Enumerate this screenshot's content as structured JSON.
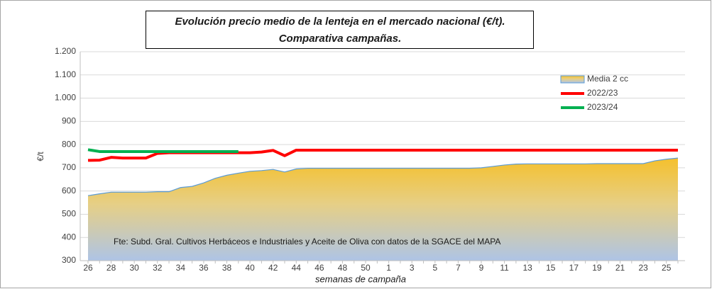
{
  "chart_data": {
    "type": "line",
    "title": [
      "Evolución precio medio de la lenteja en el mercado nacional (€/t).",
      "Comparativa campañas."
    ],
    "y_label": "€/t",
    "x_label": "semanas de campaña",
    "annotation": "Fte: Subd. Gral. Cultivos Herbáceos e Industriales y Aceite de Oliva con datos de la SGACE del MAPA",
    "categories": [
      "26",
      null,
      "28",
      null,
      "30",
      null,
      "32",
      null,
      "34",
      null,
      "36",
      null,
      "38",
      null,
      "40",
      null,
      "42",
      null,
      "44",
      null,
      "46",
      null,
      "48",
      null,
      "50",
      null,
      "1",
      null,
      "3",
      null,
      "5",
      null,
      "7",
      null,
      "9",
      null,
      "11",
      null,
      "13",
      null,
      "15",
      null,
      "17",
      null,
      "19",
      null,
      "21",
      null,
      "23",
      null,
      "25",
      null
    ],
    "series": [
      {
        "name": "Media 2 cc",
        "kind": "area",
        "color": "#5b9bd5",
        "values": [
          580,
          588,
          595,
          595,
          595,
          595,
          597,
          597,
          615,
          620,
          635,
          655,
          668,
          677,
          685,
          688,
          693,
          682,
          695,
          698,
          698,
          698,
          698,
          698,
          698,
          698,
          698,
          698,
          698,
          698,
          698,
          698,
          698,
          698,
          700,
          706,
          712,
          716,
          717,
          717,
          717,
          717,
          717,
          717,
          718,
          718,
          718,
          718,
          718,
          730,
          737,
          742
        ]
      },
      {
        "name": "2022/23",
        "kind": "line",
        "color": "#ff0000",
        "values": [
          732,
          733,
          745,
          742,
          742,
          742,
          762,
          765,
          765,
          765,
          765,
          765,
          765,
          765,
          765,
          768,
          775,
          752,
          776,
          776,
          776,
          776,
          776,
          776,
          776,
          776,
          776,
          776,
          776,
          776,
          776,
          776,
          776,
          776,
          776,
          776,
          776,
          776,
          776,
          776,
          776,
          776,
          776,
          776,
          776,
          776,
          776,
          776,
          776,
          776,
          776,
          776
        ]
      },
      {
        "name": "2023/24",
        "kind": "line",
        "color": "#00b050",
        "values": [
          778,
          770,
          770,
          770,
          770,
          770,
          770,
          770,
          770,
          770,
          770,
          770,
          770,
          770,
          null,
          null,
          null,
          null,
          null,
          null,
          null,
          null,
          null,
          null,
          null,
          null,
          null,
          null,
          null,
          null,
          null,
          null,
          null,
          null,
          null,
          null,
          null,
          null,
          null,
          null,
          null,
          null,
          null,
          null,
          null,
          null,
          null,
          null,
          null,
          null,
          null,
          null
        ]
      }
    ],
    "ylim": [
      300,
      1200
    ],
    "yticks": [
      300,
      400,
      500,
      600,
      700,
      800,
      900,
      {
        "value": 1000,
        "label": "1.000"
      },
      {
        "value": 1100,
        "label": "1.100"
      },
      {
        "value": 1200,
        "label": "1.200"
      }
    ],
    "grid": true,
    "legend": "top-right"
  }
}
